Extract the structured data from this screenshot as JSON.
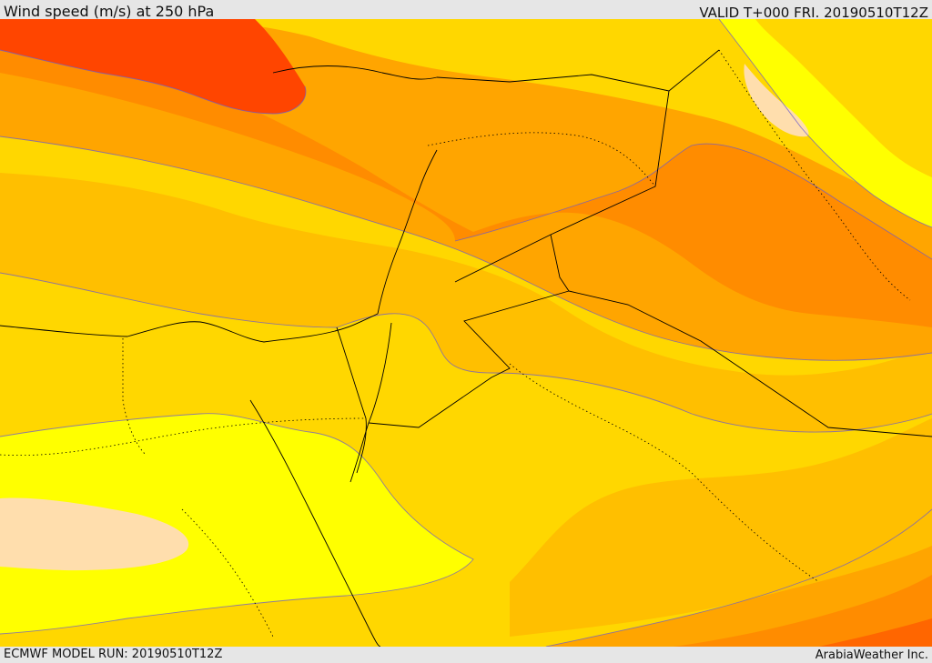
{
  "header": {
    "title": "Wind speed (m/s) at 250 hPa",
    "valid": "VALID T+000 FRI. 20190510T12Z"
  },
  "footer": {
    "model_run": "ECMWF MODEL RUN: 20190510T12Z",
    "credit": "ArabiaWeather Inc."
  },
  "map": {
    "variable": "wind speed",
    "level": "250 hPa",
    "colors": {
      "band_1": "#ffdead",
      "band_2": "#ffff00",
      "band_3": "#ffd700",
      "band_4": "#ffbf00",
      "band_5": "#ffa500",
      "band_6": "#ff8c00",
      "band_7": "#ff6600",
      "band_8": "#ff4500"
    }
  }
}
